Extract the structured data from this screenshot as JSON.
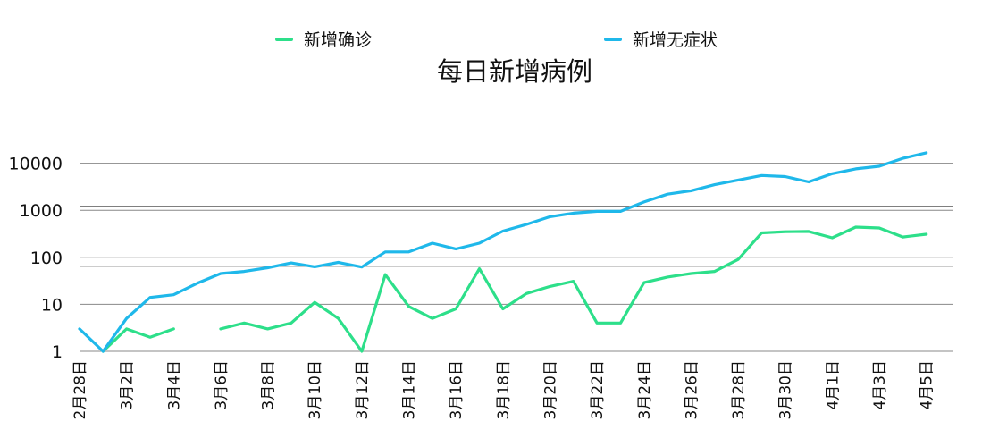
{
  "chart_data": {
    "type": "line",
    "title": "每日新增病例",
    "xlabel": "",
    "ylabel": "",
    "yscale": "log",
    "ylim": [
      1,
      16000
    ],
    "grid": true,
    "legend_position": "top",
    "x": [
      "2月28日",
      "2月29日",
      "3月1日",
      "3月2日",
      "3月3日",
      "3月4日",
      "3月5日",
      "3月6日",
      "3月7日",
      "3月8日",
      "3月9日",
      "3月10日",
      "3月11日",
      "3月12日",
      "3月13日",
      "3月14日",
      "3月15日",
      "3月16日",
      "3月17日",
      "3月18日",
      "3月19日",
      "3月20日",
      "3月21日",
      "3月22日",
      "3月23日",
      "3月24日",
      "3月25日",
      "3月26日",
      "3月27日",
      "3月28日",
      "3月29日",
      "3月30日",
      "3月31日",
      "4月1日",
      "4月2日",
      "4月3日",
      "4月4日",
      "4月5日"
    ],
    "x_tick_labels": [
      "2月28日",
      "3月2日",
      "3月4日",
      "3月6日",
      "3月8日",
      "3月10日",
      "3月12日",
      "3月14日",
      "3月16日",
      "3月18日",
      "3月20日",
      "3月22日",
      "3月24日",
      "3月26日",
      "3月28日",
      "3月30日",
      "4月1日",
      "4月3日",
      "4月5日"
    ],
    "x_tick_index": [
      0,
      2,
      4,
      6,
      8,
      10,
      12,
      14,
      16,
      18,
      20,
      22,
      24,
      26,
      28,
      30,
      32,
      34,
      36
    ],
    "y_tick_labels": [
      "1",
      "10",
      "100",
      "1000",
      "10000"
    ],
    "y_tick_values": [
      1,
      10,
      100,
      1000,
      10000
    ],
    "reference_lines": [
      1200,
      65
    ],
    "series": [
      {
        "name": "新增确诊",
        "color": "#2ddf8a",
        "values": [
          null,
          1,
          3,
          2,
          3,
          null,
          3,
          4,
          3,
          4,
          11,
          5,
          1,
          43,
          9,
          5,
          8,
          57,
          8,
          17,
          24,
          31,
          4,
          4,
          29,
          38,
          45,
          50,
          90,
          330,
          350,
          355,
          260,
          440,
          420,
          270,
          310,
          null
        ]
      },
      {
        "name": "新增无症状",
        "color": "#1fb8ea",
        "values": [
          3,
          1,
          5,
          14,
          16,
          28,
          45,
          50,
          60,
          76,
          63,
          78,
          62,
          130,
          130,
          200,
          150,
          200,
          360,
          500,
          730,
          870,
          950,
          950,
          1500,
          2200,
          2600,
          3500,
          4400,
          5500,
          5200,
          4000,
          6000,
          7600,
          8600,
          12700,
          16700,
          null
        ]
      }
    ]
  }
}
